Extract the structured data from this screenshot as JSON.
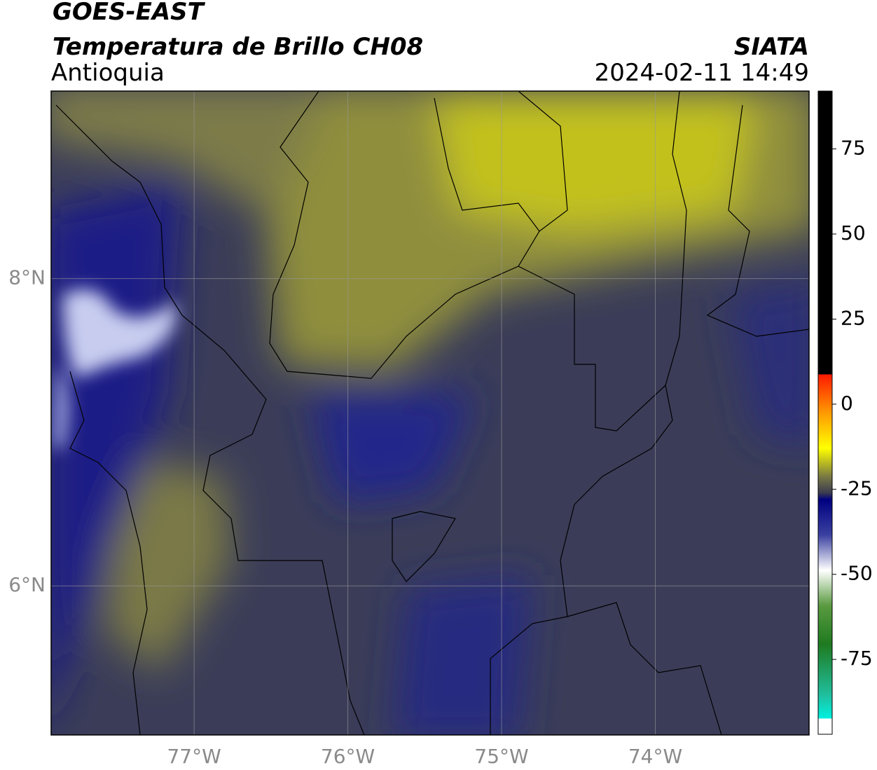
{
  "header": {
    "title": "GOES-EAST",
    "subtitle": "Temperatura de Brillo CH08",
    "region": "Antioquia",
    "source": "SIATA",
    "timestamp": "2024-02-11 14:49"
  },
  "map": {
    "xlim": [
      -77.93,
      -73.0
    ],
    "ylim": [
      5.03,
      9.22
    ],
    "xticks": [
      {
        "value": -77,
        "label": "77°W"
      },
      {
        "value": -76,
        "label": "76°W"
      },
      {
        "value": -75,
        "label": "75°W"
      },
      {
        "value": -74,
        "label": "74°W"
      }
    ],
    "yticks": [
      {
        "value": 8,
        "label": "8°N"
      },
      {
        "value": 6,
        "label": "6°N"
      }
    ],
    "grid": true
  },
  "colorbar": {
    "lim": [
      -97,
      92
    ],
    "ticks": [
      75,
      50,
      25,
      0,
      -25,
      -50,
      -75
    ]
  }
}
